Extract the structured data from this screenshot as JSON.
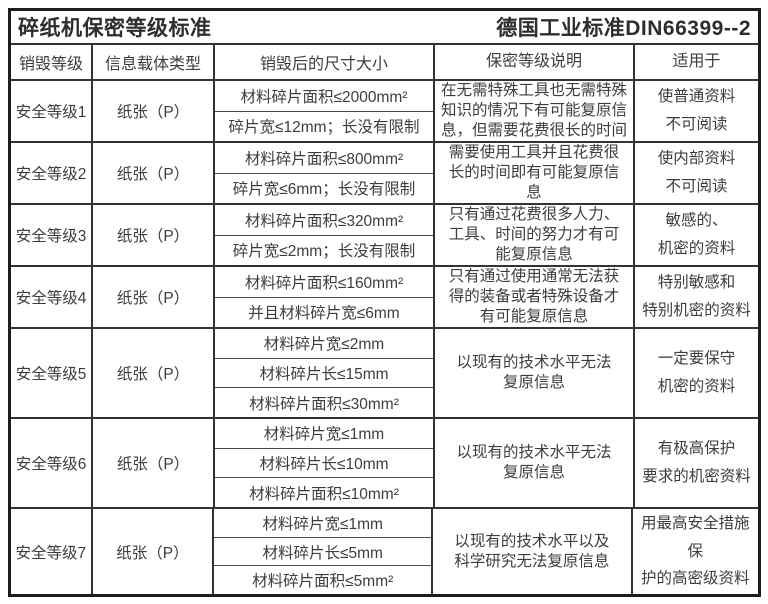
{
  "title": {
    "left": "碎纸机保密等级标准",
    "right": "德国工业标准DIN66399--2"
  },
  "colors": {
    "background": "#ffffff",
    "text": "#3d3d3d",
    "grid_border": "#333333",
    "outer_border": "#1d1d1d"
  },
  "table": {
    "columns": [
      "销毁等级",
      "信息载体类型",
      "销毁后的尺寸大小",
      "保密等级说明",
      "适用于"
    ],
    "rows": [
      {
        "level": "安全等级1",
        "media": "纸张（P）",
        "sizes": [
          "材料碎片面积≤2000mm²",
          "碎片宽≤12mm；长没有限制"
        ],
        "description": "在无需特殊工具也无需特殊\n知识的情况下有可能复原信\n息，但需要花费很长的时间",
        "use": "使普通资料\n不可阅读"
      },
      {
        "level": "安全等级2",
        "media": "纸张（P）",
        "sizes": [
          "材料碎片面积≤800mm²",
          "碎片宽≤6mm；长没有限制"
        ],
        "description": "需要使用工具并且花费很\n长的时间即有可能复原信\n息",
        "use": "使内部资料\n不可阅读"
      },
      {
        "level": "安全等级3",
        "media": "纸张（P）",
        "sizes": [
          "材料碎片面积≤320mm²",
          "碎片宽≤2mm；长没有限制"
        ],
        "description": "只有通过花费很多人力、\n工具、时间的努力才有可\n能复原信息",
        "use": "敏感的、\n机密的资料"
      },
      {
        "level": "安全等级4",
        "media": "纸张（P）",
        "sizes": [
          "材料碎片面积≤160mm²",
          "并且材料碎片宽≤6mm"
        ],
        "description": "只有通过使用通常无法获\n得的装备或者特殊设备才\n有可能复原信息",
        "use": "特别敏感和\n特别机密的资料"
      },
      {
        "level": "安全等级5",
        "media": "纸张（P）",
        "sizes": [
          "材料碎片宽≤2mm",
          "材料碎片长≤15mm",
          "材料碎片面积≤30mm²"
        ],
        "description": "以现有的技术水平无法\n复原信息",
        "use": "一定要保守\n机密的资料"
      },
      {
        "level": "安全等级6",
        "media": "纸张（P）",
        "sizes": [
          "材料碎片宽≤1mm",
          "材料碎片长≤10mm",
          "材料碎片面积≤10mm²"
        ],
        "description": "以现有的技术水平无法\n复原信息",
        "use": "有极高保护\n要求的机密资料"
      },
      {
        "level": "安全等级7",
        "media": "纸张（P）",
        "sizes": [
          "材料碎片宽≤1mm",
          "材料碎片长≤5mm",
          "材料碎片面积≤5mm²"
        ],
        "description": "以现有的技术水平以及\n科学研究无法复原信息",
        "use": "用最高安全措施保\n护的高密级资料"
      }
    ]
  }
}
